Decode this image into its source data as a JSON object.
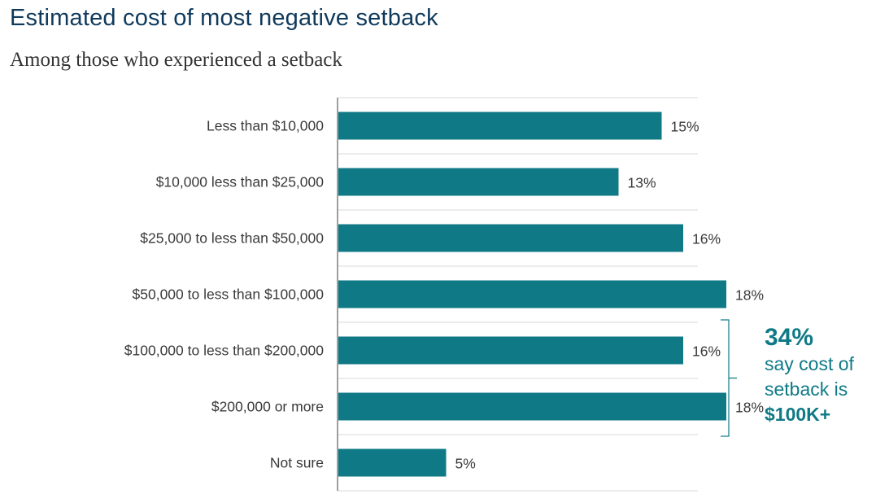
{
  "title": "Estimated cost of most negative setback",
  "subtitle": "Among those who experienced a setback",
  "colors": {
    "bar": "#0f7a86",
    "title": "#0f3a5c",
    "callout": "#0f7a86",
    "grid": "#d9d9d9",
    "axis": "#7f7f7f"
  },
  "chart_data": {
    "type": "bar",
    "orientation": "horizontal",
    "categories": [
      "Less than $10,000",
      "$10,000 less than $25,000",
      "$25,000 to less than $50,000",
      "$50,000 to less than $100,000",
      "$100,000 to less than $200,000",
      "$200,000 or more",
      "Not sure"
    ],
    "values": [
      15,
      13,
      16,
      18,
      16,
      18,
      5
    ],
    "value_labels": [
      "15%",
      "13%",
      "16%",
      "18%",
      "16%",
      "18%",
      "5%"
    ],
    "unit": "%",
    "xlim": [
      0,
      20
    ],
    "grid": true
  },
  "callout": {
    "percent": "34%",
    "line1": "say cost of",
    "line2": "setback is",
    "line3": "$100K+"
  }
}
